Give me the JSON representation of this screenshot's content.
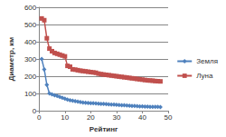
{
  "chart_data": {
    "type": "line",
    "x_label": "Рейтинг",
    "y_label": "Диаметр, км",
    "x": [
      1,
      2,
      3,
      4,
      5,
      6,
      7,
      8,
      9,
      10,
      11,
      12,
      13,
      14,
      15,
      16,
      17,
      18,
      19,
      20,
      21,
      22,
      23,
      24,
      25,
      26,
      27,
      28,
      29,
      30,
      31,
      32,
      33,
      34,
      35,
      36,
      37,
      38,
      39,
      40,
      41,
      42,
      43,
      44,
      45,
      46,
      47
    ],
    "series": [
      {
        "name": "Земля",
        "color": "#4f81bd",
        "marker": "diamond",
        "values": [
          300,
          240,
          150,
          100,
          95,
          90,
          85,
          80,
          75,
          70,
          65,
          60,
          58,
          55,
          52,
          50,
          48,
          46,
          45,
          44,
          43,
          42,
          41,
          40,
          39,
          38,
          37,
          36,
          35,
          34,
          33,
          32,
          31,
          30,
          29,
          28,
          27,
          26,
          25,
          25,
          24,
          24,
          23,
          23,
          22,
          22,
          21
        ]
      },
      {
        "name": "Луна",
        "color": "#c0504d",
        "marker": "square",
        "values": [
          535,
          525,
          420,
          360,
          345,
          335,
          330,
          325,
          320,
          315,
          260,
          255,
          240,
          238,
          235,
          232,
          230,
          228,
          226,
          224,
          222,
          220,
          215,
          212,
          210,
          208,
          206,
          204,
          202,
          200,
          198,
          196,
          194,
          192,
          190,
          188,
          186,
          184,
          182,
          180,
          178,
          176,
          175,
          174,
          172,
          171,
          170
        ]
      }
    ],
    "xlim": [
      0,
      50
    ],
    "xticks": [
      0,
      10,
      20,
      30,
      40,
      50
    ],
    "ylim": [
      0,
      600
    ],
    "yticks": [
      0,
      100,
      200,
      300,
      400,
      500,
      600
    ],
    "grid": true,
    "legend": "right"
  }
}
